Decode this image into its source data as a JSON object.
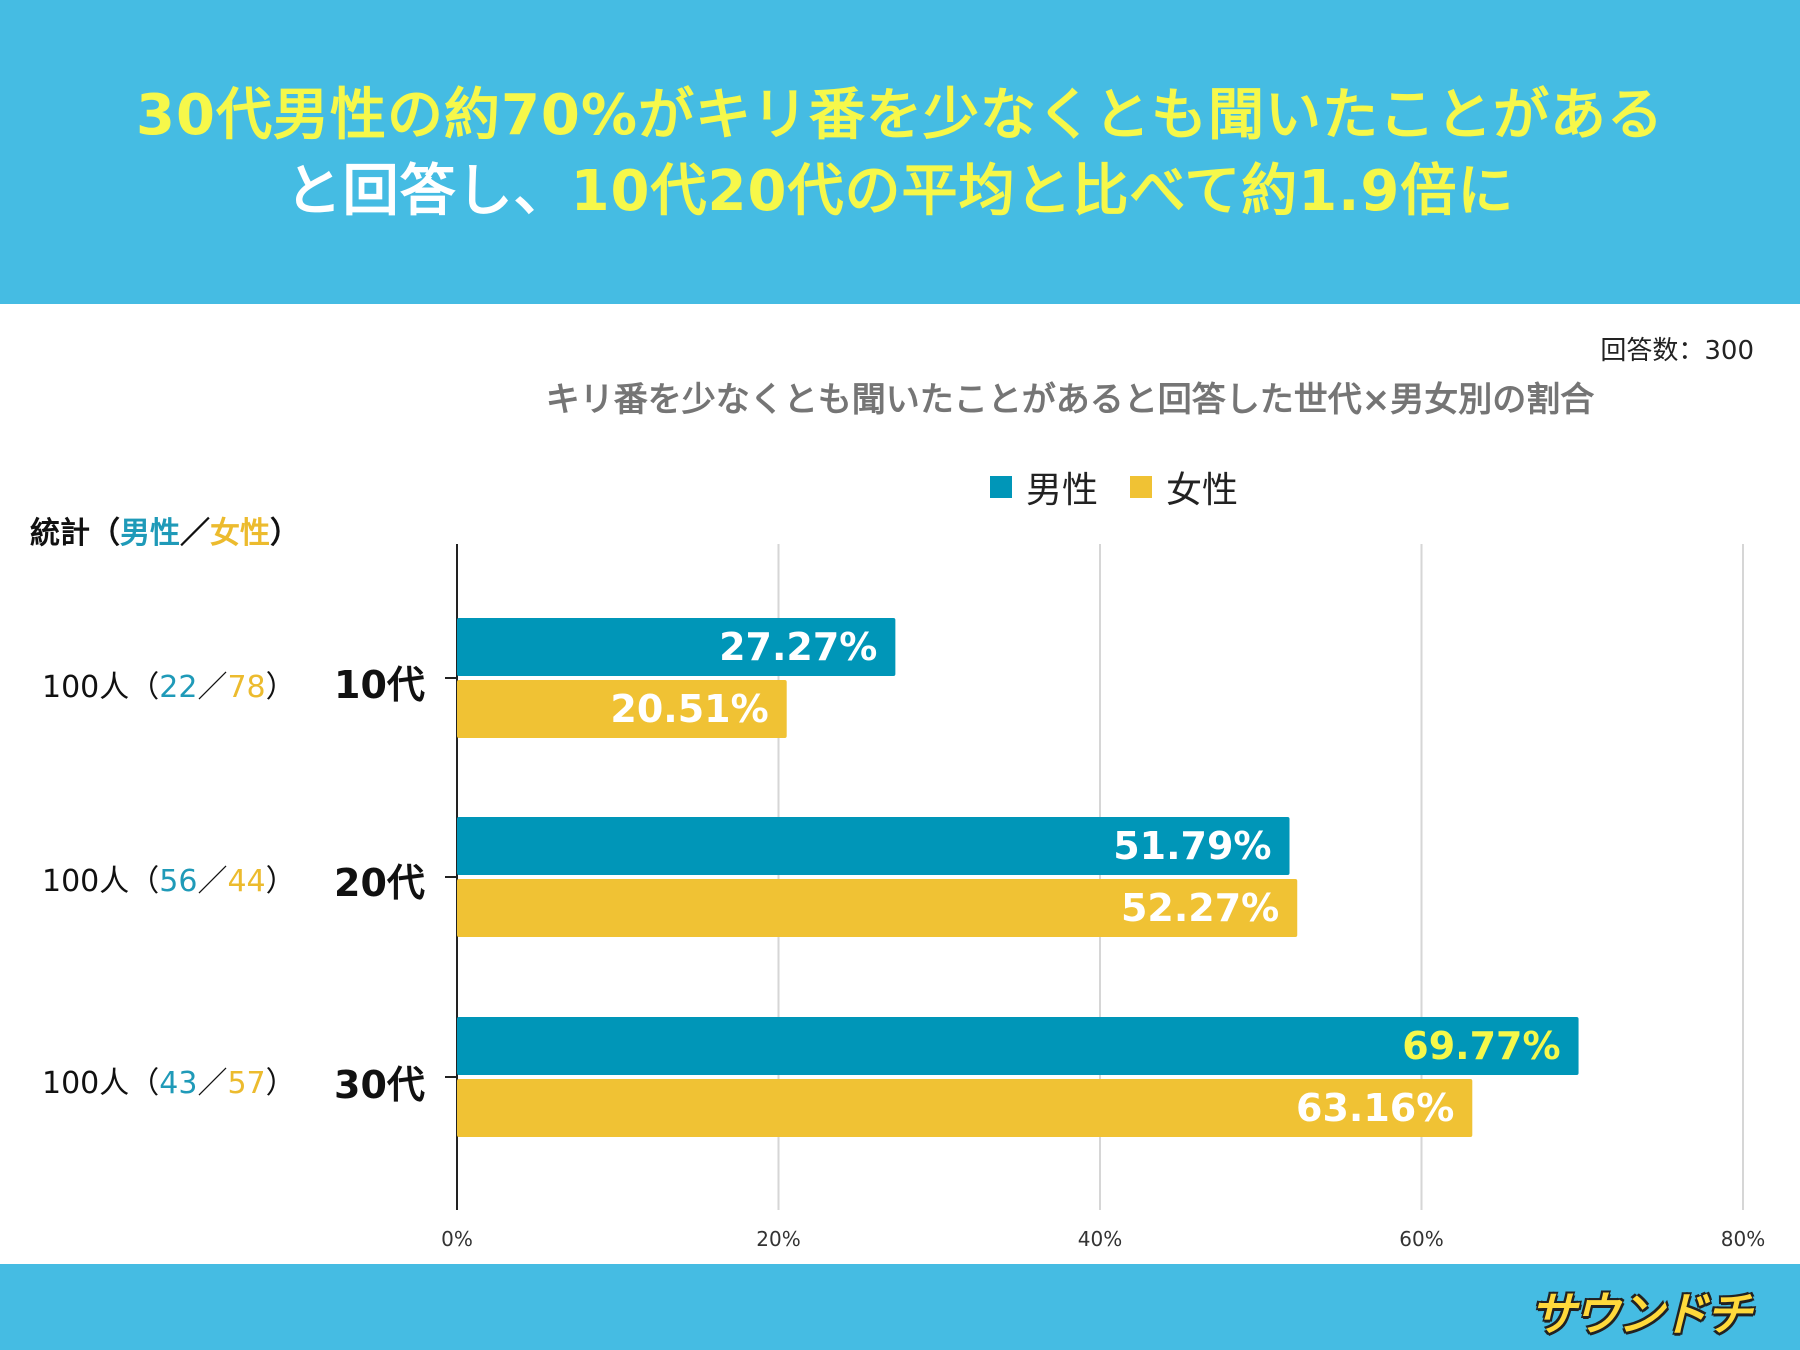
{
  "headline": {
    "line1": "30代男性の約70%がキリ番を少なくとも聞いたことがある",
    "line2_prefix": "と回答し、",
    "line2_main": "10代20代の平均と比べて約1.9倍に"
  },
  "respondents": "回答数：300",
  "stats": {
    "title_prefix": "統計（",
    "title_male": "男性",
    "title_sep": "／",
    "title_female": "女性",
    "title_suffix": "）",
    "rows": [
      {
        "total": "100人（",
        "male": "22",
        "sep": "／",
        "female": "78",
        "close": "）"
      },
      {
        "total": "100人（",
        "male": "56",
        "sep": "／",
        "female": "44",
        "close": "）"
      },
      {
        "total": "100人（",
        "male": "43",
        "sep": "／",
        "female": "57",
        "close": "）"
      }
    ]
  },
  "logo_text": "サウンドチ",
  "colors": {
    "male": "#0096b8",
    "female": "#f0c234",
    "highlight": "#f6f84a",
    "header_bg": "#45bce3"
  },
  "chart_data": {
    "type": "bar",
    "orientation": "horizontal",
    "title": "キリ番を少なくとも聞いたことがあると回答した世代×男女別の割合",
    "categories": [
      "10代",
      "20代",
      "30代"
    ],
    "series": [
      {
        "name": "男性",
        "values": [
          27.27,
          51.79,
          69.77
        ],
        "labels": [
          "27.27%",
          "51.79%",
          "69.77%"
        ]
      },
      {
        "name": "女性",
        "values": [
          20.51,
          52.27,
          63.16
        ],
        "labels": [
          "20.51%",
          "52.27%",
          "63.16%"
        ]
      }
    ],
    "xlim": [
      0,
      80
    ],
    "xticks": [
      "0%",
      "20%",
      "40%",
      "60%",
      "80%"
    ],
    "highlight_label": "69.77%",
    "legend": "top",
    "grid": true
  }
}
